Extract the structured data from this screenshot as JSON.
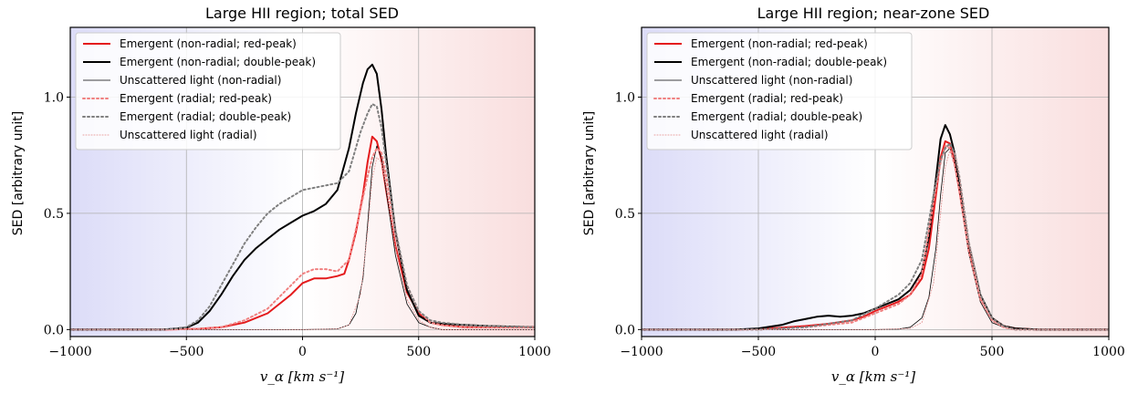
{
  "chart_data": [
    {
      "type": "line",
      "title": "Large HII region; total SED",
      "xlabel": "v_α [km s⁻¹]",
      "ylabel": "SED [arbitrary unit]",
      "xlim": [
        -1000,
        1000
      ],
      "ylim": [
        -0.03,
        1.3
      ],
      "xticks": [
        -1000,
        -500,
        0,
        500,
        1000
      ],
      "xtick_labels": [
        "−1000",
        "−500",
        "0",
        "500",
        "1000"
      ],
      "yticks": [
        0.0,
        0.5,
        1.0
      ],
      "ytick_labels": [
        "0.0",
        "0.5",
        "1.0"
      ],
      "grid": true,
      "legend_position": "top-left",
      "background": "horizontal gradient, blue at negative velocities to red at positive velocities",
      "series": [
        {
          "name": "Emergent (non-radial; red-peak)",
          "color": "#e41a1c",
          "style": "solid",
          "width": 2,
          "x": [
            -1000,
            -600,
            -450,
            -350,
            -250,
            -150,
            -50,
            0,
            50,
            100,
            150,
            180,
            200,
            230,
            260,
            280,
            300,
            320,
            340,
            360,
            400,
            450,
            500,
            550,
            600,
            700,
            800,
            1000
          ],
          "y": [
            0.0,
            0.0,
            0.003,
            0.01,
            0.03,
            0.07,
            0.15,
            0.2,
            0.22,
            0.22,
            0.23,
            0.24,
            0.3,
            0.42,
            0.58,
            0.72,
            0.83,
            0.81,
            0.73,
            0.6,
            0.36,
            0.16,
            0.07,
            0.03,
            0.02,
            0.01,
            0.01,
            0.01
          ]
        },
        {
          "name": "Emergent (non-radial; double-peak)",
          "color": "#000000",
          "style": "solid",
          "width": 2,
          "x": [
            -1000,
            -600,
            -500,
            -450,
            -400,
            -350,
            -300,
            -250,
            -200,
            -150,
            -100,
            -50,
            0,
            50,
            100,
            150,
            200,
            230,
            260,
            280,
            300,
            320,
            340,
            360,
            400,
            450,
            500,
            550,
            600,
            700,
            800,
            1000
          ],
          "y": [
            0.0,
            0.0,
            0.008,
            0.03,
            0.08,
            0.15,
            0.23,
            0.3,
            0.35,
            0.39,
            0.43,
            0.46,
            0.49,
            0.51,
            0.54,
            0.6,
            0.78,
            0.93,
            1.06,
            1.12,
            1.14,
            1.1,
            0.95,
            0.75,
            0.42,
            0.17,
            0.06,
            0.03,
            0.025,
            0.02,
            0.015,
            0.01
          ]
        },
        {
          "name": "Unscattered light (non-radial)",
          "color": "#000000",
          "style": "solid",
          "width": 0.8,
          "x": [
            -1000,
            0,
            150,
            200,
            230,
            260,
            280,
            300,
            320,
            340,
            360,
            400,
            450,
            500,
            550,
            600,
            1000
          ],
          "y": [
            0.0,
            0.0,
            0.003,
            0.02,
            0.07,
            0.22,
            0.45,
            0.7,
            0.79,
            0.74,
            0.6,
            0.32,
            0.11,
            0.03,
            0.01,
            0.0,
            0.0
          ]
        },
        {
          "name": "Emergent (radial; red-peak)",
          "color": "#f08080",
          "style": "dotted",
          "width": 2,
          "x": [
            -1000,
            -600,
            -450,
            -350,
            -250,
            -150,
            -50,
            0,
            50,
            100,
            150,
            200,
            250,
            280,
            300,
            320,
            340,
            360,
            400,
            450,
            500,
            550,
            600,
            700,
            800,
            1000
          ],
          "y": [
            0.0,
            0.0,
            0.003,
            0.01,
            0.04,
            0.09,
            0.19,
            0.24,
            0.26,
            0.26,
            0.25,
            0.3,
            0.52,
            0.66,
            0.74,
            0.78,
            0.76,
            0.66,
            0.42,
            0.19,
            0.08,
            0.03,
            0.02,
            0.01,
            0.01,
            0.01
          ]
        },
        {
          "name": "Emergent (radial; double-peak)",
          "color": "#7f7f7f",
          "style": "dotted",
          "width": 2,
          "x": [
            -1000,
            -600,
            -500,
            -450,
            -400,
            -350,
            -300,
            -250,
            -200,
            -150,
            -100,
            -50,
            0,
            50,
            100,
            150,
            200,
            250,
            280,
            300,
            320,
            340,
            360,
            400,
            450,
            500,
            550,
            600,
            700,
            800,
            1000
          ],
          "y": [
            0.0,
            0.0,
            0.01,
            0.04,
            0.1,
            0.19,
            0.28,
            0.37,
            0.44,
            0.5,
            0.54,
            0.57,
            0.6,
            0.61,
            0.62,
            0.63,
            0.68,
            0.85,
            0.93,
            0.97,
            0.96,
            0.87,
            0.72,
            0.43,
            0.19,
            0.08,
            0.04,
            0.03,
            0.02,
            0.015,
            0.01
          ]
        },
        {
          "name": "Unscattered light (radial)",
          "color": "#e8a0a0",
          "style": "dotted",
          "width": 1,
          "x": [
            -1000,
            0,
            150,
            200,
            250,
            280,
            300,
            320,
            340,
            360,
            400,
            450,
            500,
            550,
            600,
            1000
          ],
          "y": [
            0.0,
            0.0,
            0.003,
            0.02,
            0.15,
            0.42,
            0.65,
            0.74,
            0.72,
            0.62,
            0.35,
            0.13,
            0.04,
            0.01,
            0.0,
            0.0
          ]
        }
      ]
    },
    {
      "type": "line",
      "title": "Large HII region; near-zone SED",
      "xlabel": "v_α [km s⁻¹]",
      "ylabel": "SED [arbitrary unit]",
      "xlim": [
        -1000,
        1000
      ],
      "ylim": [
        -0.03,
        1.3
      ],
      "xticks": [
        -1000,
        -500,
        0,
        500,
        1000
      ],
      "xtick_labels": [
        "−1000",
        "−500",
        "0",
        "500",
        "1000"
      ],
      "yticks": [
        0.0,
        0.5,
        1.0
      ],
      "ytick_labels": [
        "0.0",
        "0.5",
        "1.0"
      ],
      "grid": true,
      "legend_position": "top-left",
      "background": "horizontal gradient, blue at negative velocities to red at positive velocities",
      "series": [
        {
          "name": "Emergent (non-radial; red-peak)",
          "color": "#e41a1c",
          "style": "solid",
          "width": 2,
          "x": [
            -1000,
            -600,
            -500,
            -400,
            -300,
            -200,
            -100,
            -50,
            0,
            50,
            100,
            150,
            200,
            230,
            260,
            280,
            300,
            320,
            340,
            360,
            400,
            450,
            500,
            550,
            600,
            700,
            1000
          ],
          "y": [
            0.0,
            0.0,
            0.002,
            0.008,
            0.015,
            0.025,
            0.04,
            0.055,
            0.08,
            0.1,
            0.12,
            0.15,
            0.22,
            0.35,
            0.58,
            0.74,
            0.81,
            0.8,
            0.72,
            0.6,
            0.35,
            0.14,
            0.05,
            0.015,
            0.005,
            0.0,
            0.0
          ]
        },
        {
          "name": "Emergent (non-radial; double-peak)",
          "color": "#000000",
          "style": "solid",
          "width": 2,
          "x": [
            -1000,
            -600,
            -500,
            -400,
            -350,
            -300,
            -250,
            -200,
            -150,
            -100,
            -50,
            0,
            50,
            100,
            150,
            200,
            230,
            260,
            280,
            300,
            320,
            340,
            360,
            400,
            450,
            500,
            550,
            600,
            700,
            1000
          ],
          "y": [
            0.0,
            0.0,
            0.005,
            0.02,
            0.035,
            0.045,
            0.055,
            0.06,
            0.055,
            0.06,
            0.07,
            0.09,
            0.11,
            0.13,
            0.17,
            0.25,
            0.4,
            0.65,
            0.82,
            0.88,
            0.84,
            0.76,
            0.63,
            0.37,
            0.15,
            0.05,
            0.015,
            0.005,
            0.0,
            0.0
          ]
        },
        {
          "name": "Unscattered light (non-radial)",
          "color": "#000000",
          "style": "solid",
          "width": 0.8,
          "x": [
            -1000,
            0,
            100,
            150,
            200,
            230,
            260,
            280,
            300,
            320,
            340,
            360,
            400,
            450,
            500,
            550,
            600,
            1000
          ],
          "y": [
            0.0,
            0.0,
            0.002,
            0.01,
            0.05,
            0.14,
            0.35,
            0.58,
            0.76,
            0.78,
            0.72,
            0.6,
            0.33,
            0.12,
            0.03,
            0.01,
            0.0,
            0.0
          ]
        },
        {
          "name": "Emergent (radial; red-peak)",
          "color": "#f08080",
          "style": "dotted",
          "width": 2,
          "x": [
            -1000,
            -500,
            -300,
            -100,
            0,
            50,
            100,
            150,
            200,
            250,
            280,
            300,
            320,
            340,
            360,
            400,
            450,
            500,
            550,
            600,
            1000
          ],
          "y": [
            0.0,
            0.0,
            0.01,
            0.03,
            0.07,
            0.09,
            0.11,
            0.15,
            0.24,
            0.55,
            0.72,
            0.79,
            0.78,
            0.71,
            0.6,
            0.34,
            0.13,
            0.04,
            0.01,
            0.0,
            0.0
          ]
        },
        {
          "name": "Emergent (radial; double-peak)",
          "color": "#7f7f7f",
          "style": "dotted",
          "width": 2,
          "x": [
            -1000,
            -500,
            -300,
            -100,
            0,
            50,
            100,
            150,
            200,
            250,
            280,
            300,
            320,
            340,
            360,
            400,
            450,
            500,
            550,
            600,
            1000
          ],
          "y": [
            0.0,
            0.0,
            0.01,
            0.04,
            0.09,
            0.12,
            0.15,
            0.2,
            0.3,
            0.58,
            0.73,
            0.78,
            0.8,
            0.76,
            0.66,
            0.38,
            0.15,
            0.05,
            0.015,
            0.0,
            0.0
          ]
        },
        {
          "name": "Unscattered light (radial)",
          "color": "#e8a0a0",
          "style": "dotted",
          "width": 1,
          "x": [
            -1000,
            0,
            150,
            200,
            250,
            280,
            300,
            320,
            340,
            360,
            400,
            450,
            500,
            550,
            600,
            1000
          ],
          "y": [
            0.0,
            0.0,
            0.005,
            0.03,
            0.2,
            0.5,
            0.7,
            0.77,
            0.76,
            0.66,
            0.38,
            0.14,
            0.04,
            0.01,
            0.0,
            0.0
          ]
        }
      ]
    }
  ]
}
